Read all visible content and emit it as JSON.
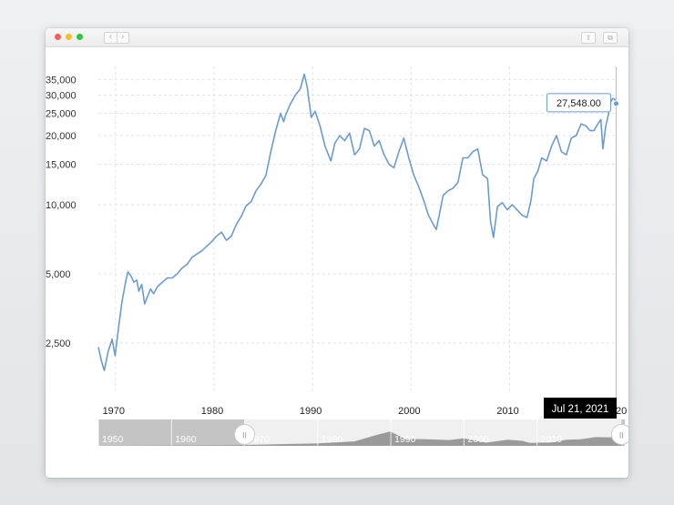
{
  "window": {
    "nav_back": "‹",
    "nav_forward": "›",
    "share_icon": "share-icon",
    "copy_icon": "copy-icon"
  },
  "chart_data": {
    "type": "line",
    "yscale": "log",
    "ylim": [
      1500,
      40000
    ],
    "xlim": [
      1969.0,
      2021.6
    ],
    "y_ticks": [
      2500,
      5000,
      10000,
      15000,
      20000,
      25000,
      30000,
      35000
    ],
    "y_tick_labels": [
      "2,500",
      "5,000",
      "10,000",
      "15,000",
      "20,000",
      "25,000",
      "30,000",
      "35,000"
    ],
    "x_ticks": [
      1970,
      1980,
      1990,
      2000,
      2010
    ],
    "x_tick_labels": [
      "1970",
      "1980",
      "1990",
      "2000",
      "2010"
    ],
    "x_tick_extra_label": "20",
    "grid": true,
    "line_color": "#6b9bd1",
    "series": [
      {
        "x": [
          1969.0,
          1969.3,
          1969.6,
          1970.0,
          1970.4,
          1970.7,
          1971.0,
          1971.4,
          1971.8,
          1972.0,
          1972.3,
          1972.6,
          1972.9,
          1973.1,
          1973.4,
          1973.7,
          1974.0,
          1974.3,
          1974.6,
          1975.0,
          1975.5,
          1976.0,
          1976.5,
          1977.0,
          1977.5,
          1978.0,
          1978.5,
          1979.0,
          1979.5,
          1980.0,
          1980.5,
          1981.0,
          1981.5,
          1982.0,
          1982.5,
          1983.0,
          1983.5,
          1984.0,
          1984.5,
          1985.0,
          1985.5,
          1986.0,
          1986.5,
          1987.0,
          1987.5,
          1987.8,
          1988.0,
          1988.5,
          1989.0,
          1989.5,
          1989.9,
          1990.2,
          1990.6,
          1991.0,
          1991.5,
          1992.0,
          1992.6,
          1993.0,
          1993.5,
          1994.0,
          1994.5,
          1995.0,
          1995.5,
          1996.0,
          1996.5,
          1997.0,
          1997.5,
          1998.0,
          1998.5,
          1999.0,
          1999.5,
          2000.0,
          2000.5,
          2001.0,
          2001.5,
          2002.0,
          2002.5,
          2003.0,
          2003.3,
          2003.7,
          2004.0,
          2004.5,
          2005.0,
          2005.5,
          2006.0,
          2006.5,
          2007.0,
          2007.5,
          2008.0,
          2008.5,
          2008.8,
          2009.1,
          2009.5,
          2010.0,
          2010.5,
          2011.0,
          2011.5,
          2012.0,
          2012.5,
          2012.9,
          2013.2,
          2013.6,
          2014.0,
          2014.5,
          2015.0,
          2015.5,
          2016.0,
          2016.5,
          2017.0,
          2017.5,
          2018.0,
          2018.5,
          2018.9,
          2019.3,
          2019.7,
          2020.0,
          2020.2,
          2020.5,
          2020.8,
          2021.0,
          2021.2,
          2021.4,
          2021.55
        ],
        "y": [
          2400,
          2100,
          1900,
          2300,
          2600,
          2200,
          2800,
          3800,
          4700,
          5100,
          4900,
          4600,
          4700,
          4200,
          4500,
          3700,
          4000,
          4300,
          4100,
          4400,
          4600,
          4800,
          4800,
          5000,
          5300,
          5500,
          5900,
          6100,
          6300,
          6600,
          6900,
          7300,
          7600,
          7000,
          7300,
          8200,
          8900,
          9900,
          10300,
          11500,
          12300,
          13400,
          17000,
          21000,
          25000,
          23000,
          24500,
          27500,
          30000,
          32000,
          37000,
          32500,
          24000,
          25500,
          22000,
          18000,
          15500,
          18500,
          20000,
          19000,
          20500,
          16500,
          17500,
          21500,
          21000,
          18000,
          19000,
          16500,
          15000,
          14500,
          17000,
          19500,
          16000,
          13500,
          12000,
          10500,
          9000,
          8200,
          7800,
          9500,
          11000,
          11500,
          11800,
          12500,
          16000,
          16000,
          17000,
          17500,
          13500,
          13000,
          8500,
          7200,
          9800,
          10200,
          9500,
          10000,
          9500,
          9000,
          8800,
          10400,
          13000,
          14000,
          16000,
          15500,
          18000,
          20000,
          17000,
          16500,
          19500,
          20000,
          22500,
          22000,
          21000,
          21000,
          22500,
          23500,
          17500,
          22000,
          25000,
          28000,
          29000,
          28800,
          27548
        ]
      }
    ],
    "tooltip": {
      "value_label": "27,548.00",
      "date_label": "Jul 21, 2021",
      "at_x": 2021.55,
      "at_y": 27548
    },
    "navigator": {
      "decade_labels": [
        "1950",
        "1960",
        "1970",
        "1980",
        "1990",
        "2000",
        "2010"
      ],
      "decade_years": [
        1950,
        1960,
        1970,
        1980,
        1990,
        2000,
        2010
      ],
      "range_start": 1950.0,
      "range_end": 2022.0,
      "selected_start": 1970.0,
      "selected_end": 2021.55,
      "handle_symbol": "II",
      "area_x": [
        1950,
        1955,
        1960,
        1965,
        1970,
        1975,
        1980,
        1985,
        1988,
        1989.9,
        1992,
        1995,
        1998,
        2000,
        2003,
        2006,
        2008,
        2009,
        2012,
        2014,
        2016,
        2018,
        2020,
        2021.55
      ],
      "area_y": [
        100,
        400,
        1100,
        1400,
        2300,
        4400,
        6600,
        11500,
        28000,
        37000,
        18000,
        17000,
        15000,
        19500,
        8200,
        16000,
        13000,
        7500,
        9000,
        16000,
        17000,
        22500,
        22000,
        27548
      ]
    }
  }
}
